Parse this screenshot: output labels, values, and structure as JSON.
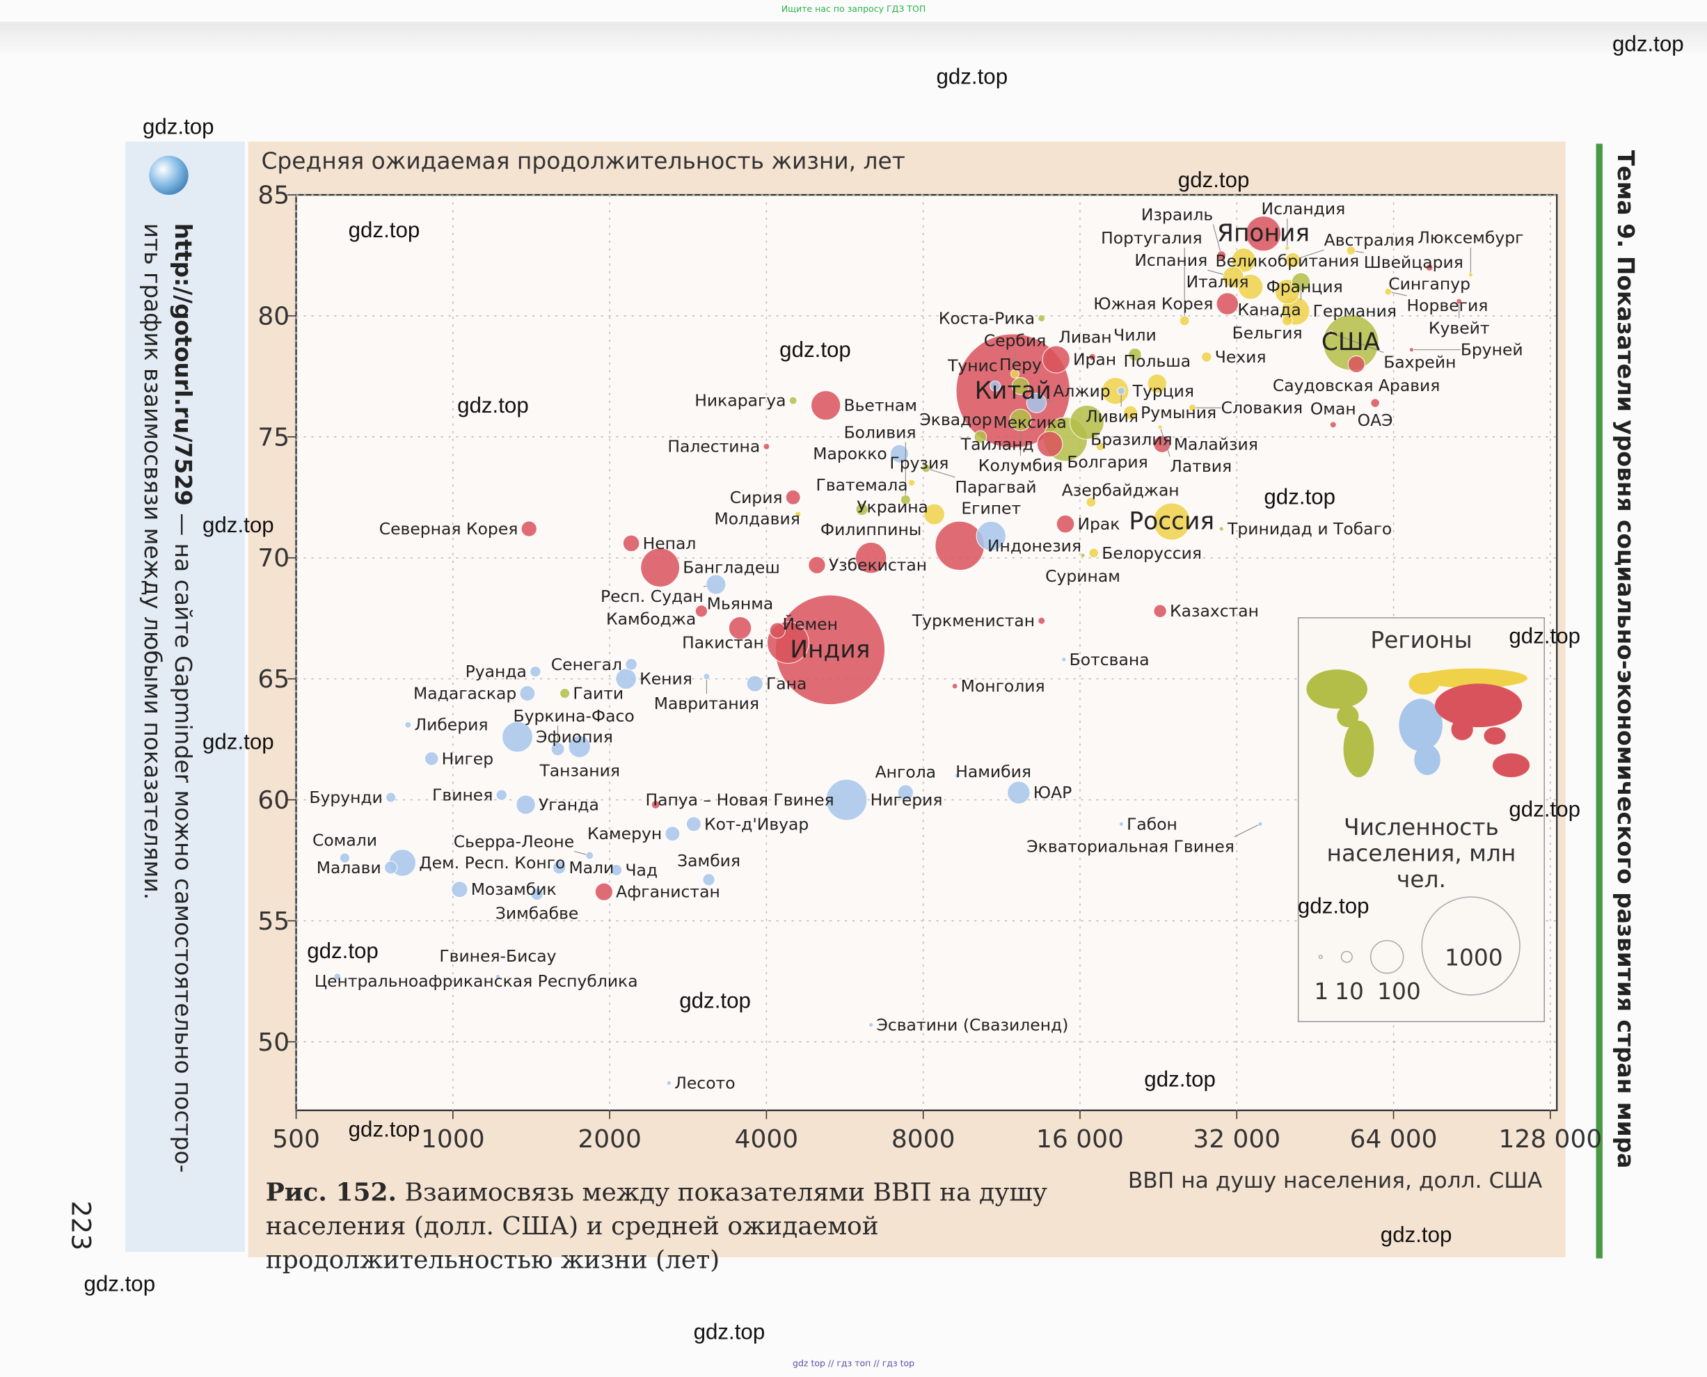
{
  "top_banner": "Ищите нас по запросу ГДЗ ТОП",
  "bottom_banner": "gdz top // гдз топ // гдз top",
  "watermark": "gdz.top",
  "sidebar": {
    "link": "http://gotourl.ru/7529",
    "text_line1": " — на сайте Gapminder можно самостоятельно постро-",
    "text_line2": "ить график взаимосвязи между любыми показателями.",
    "page_number": "223"
  },
  "topic_header": "Тема 9. Показатели уровня социально-экономического развития стран мира",
  "caption": {
    "label": "Рис. 152.",
    "text": "Взаимосвязь между показателями ВВП на душу населения (долл. США) и средней ожидаемой продолжительностью жизни (лет)"
  },
  "legend": {
    "regions_title": "Регионы",
    "population_title": "Численность населения, млн чел.",
    "sizes": [
      1,
      10,
      100,
      1000
    ]
  },
  "chart_data": {
    "type": "scatter",
    "title": "",
    "ylabel": "Средняя ожидаемая продолжительность жизни, лет",
    "xlabel": "ВВП на душу населения, долл. США",
    "x_scale": "log2",
    "xlim": [
      500,
      140000
    ],
    "ylim": [
      47,
      85
    ],
    "x_ticks": [
      500,
      1000,
      2000,
      4000,
      8000,
      16000,
      32000,
      64000,
      128000
    ],
    "x_tick_labels": [
      "500",
      "1000",
      "2000",
      "4000",
      "8000",
      "16 000",
      "32 000",
      "64 000",
      "128 000"
    ],
    "y_ticks": [
      50,
      55,
      60,
      65,
      70,
      75,
      80,
      85
    ],
    "grid": true,
    "legend_position": "right",
    "size_encoding": "population, mln",
    "region_colors": {
      "asia": "#d9535d",
      "europe": "#efd24a",
      "americas": "#b3be48",
      "africa": "#a7c6ea"
    },
    "points": [
      {
        "country": "Япония",
        "gdp": 36000,
        "life": 83.4,
        "pop": 127,
        "region": "asia"
      },
      {
        "country": "Исландия",
        "gdp": 40000,
        "life": 82.8,
        "pop": 0.3,
        "region": "europe"
      },
      {
        "country": "Швейцария",
        "gdp": 53000,
        "life": 82.7,
        "pop": 8,
        "region": "europe"
      },
      {
        "country": "Австралия",
        "gdp": 41000,
        "life": 82.3,
        "pop": 23,
        "region": "europe"
      },
      {
        "country": "Италия",
        "gdp": 33000,
        "life": 82.3,
        "pop": 60,
        "region": "europe"
      },
      {
        "country": "Израиль",
        "gdp": 29900,
        "life": 82.5,
        "pop": 8,
        "region": "asia"
      },
      {
        "country": "Франция",
        "gdp": 34000,
        "life": 81.2,
        "pop": 65,
        "region": "europe"
      },
      {
        "country": "Испания",
        "gdp": 31500,
        "life": 81.6,
        "pop": 46,
        "region": "europe"
      },
      {
        "country": "Сингапур",
        "gdp": 75000,
        "life": 82.0,
        "pop": 5,
        "region": "asia"
      },
      {
        "country": "Люксембург",
        "gdp": 90000,
        "life": 81.7,
        "pop": 0.5,
        "region": "europe"
      },
      {
        "country": "Канада",
        "gdp": 42500,
        "life": 81.4,
        "pop": 35,
        "region": "americas"
      },
      {
        "country": "Великобритания",
        "gdp": 40000,
        "life": 81.0,
        "pop": 63,
        "region": "europe"
      },
      {
        "country": "Норвегия",
        "gdp": 62500,
        "life": 81.0,
        "pop": 5,
        "region": "europe"
      },
      {
        "country": "Южная Корея",
        "gdp": 30700,
        "life": 80.5,
        "pop": 50,
        "region": "asia"
      },
      {
        "country": "Германия",
        "gdp": 41500,
        "life": 80.2,
        "pop": 82,
        "region": "europe"
      },
      {
        "country": "Кувейт",
        "gdp": 85500,
        "life": 80.6,
        "pop": 3,
        "region": "asia"
      },
      {
        "country": "Коста-Рика",
        "gdp": 13500,
        "life": 79.9,
        "pop": 5,
        "region": "americas"
      },
      {
        "country": "Португалия",
        "gdp": 25400,
        "life": 79.8,
        "pop": 10,
        "region": "europe"
      },
      {
        "country": "Бельгия",
        "gdp": 40000,
        "life": 79.8,
        "pop": 11,
        "region": "europe"
      },
      {
        "country": "США",
        "gdp": 53000,
        "life": 78.9,
        "pop": 320,
        "region": "americas"
      },
      {
        "country": "Бахрейн",
        "gdp": 48500,
        "life": 79.3,
        "pop": 1,
        "region": "asia"
      },
      {
        "country": "Бруней",
        "gdp": 69300,
        "life": 78.6,
        "pop": 0.4,
        "region": "asia"
      },
      {
        "country": "Саудовская Аравия",
        "gdp": 54300,
        "life": 78.0,
        "pop": 29,
        "region": "asia"
      },
      {
        "country": "ОАЭ",
        "gdp": 59000,
        "life": 76.4,
        "pop": 8,
        "region": "asia"
      },
      {
        "country": "Оман",
        "gdp": 49000,
        "life": 75.5,
        "pop": 4,
        "region": "asia"
      },
      {
        "country": "Китай",
        "gdp": 11900,
        "life": 76.9,
        "pop": 1350,
        "region": "asia"
      },
      {
        "country": "Иран",
        "gdp": 14400,
        "life": 78.2,
        "pop": 77,
        "region": "asia"
      },
      {
        "country": "Ливан",
        "gdp": 16900,
        "life": 78.3,
        "pop": 4.5,
        "region": "asia"
      },
      {
        "country": "Чили",
        "gdp": 20400,
        "life": 78.4,
        "pop": 17,
        "region": "americas"
      },
      {
        "country": "Чехия",
        "gdp": 28000,
        "life": 78.3,
        "pop": 10.5,
        "region": "europe"
      },
      {
        "country": "Сербия",
        "gdp": 12000,
        "life": 77.6,
        "pop": 7,
        "region": "europe"
      },
      {
        "country": "Тунис",
        "gdp": 11000,
        "life": 77.1,
        "pop": 11,
        "region": "africa"
      },
      {
        "country": "Перу",
        "gdp": 12300,
        "life": 77.1,
        "pop": 30,
        "region": "americas"
      },
      {
        "country": "Турция",
        "gdp": 18700,
        "life": 76.9,
        "pop": 75,
        "region": "europe"
      },
      {
        "country": "Польша",
        "gdp": 22500,
        "life": 77.2,
        "pop": 38,
        "region": "europe"
      },
      {
        "country": "Алжир",
        "gdp": 13200,
        "life": 76.4,
        "pop": 40,
        "region": "africa"
      },
      {
        "country": "Ливия",
        "gdp": 19200,
        "life": 76.9,
        "pop": 6,
        "region": "africa"
      },
      {
        "country": "Колумбия",
        "gdp": 12300,
        "life": 75.7,
        "pop": 48,
        "region": "americas"
      },
      {
        "country": "Румыния",
        "gdp": 20000,
        "life": 76.0,
        "pop": 20,
        "region": "europe"
      },
      {
        "country": "Словакия",
        "gdp": 26300,
        "life": 76.2,
        "pop": 5.4,
        "region": "europe"
      },
      {
        "country": "Мексика",
        "gdp": 16500,
        "life": 75.6,
        "pop": 120,
        "region": "americas"
      },
      {
        "country": "Латвия",
        "gdp": 22800,
        "life": 75.4,
        "pop": 2,
        "region": "europe"
      },
      {
        "country": "Эквадор",
        "gdp": 10300,
        "life": 75.0,
        "pop": 16,
        "region": "americas"
      },
      {
        "country": "Таиланд",
        "gdp": 14000,
        "life": 74.7,
        "pop": 67,
        "region": "asia"
      },
      {
        "country": "Бразилия",
        "gdp": 15000,
        "life": 74.9,
        "pop": 200,
        "region": "americas"
      },
      {
        "country": "Болгария",
        "gdp": 17500,
        "life": 74.6,
        "pop": 7,
        "region": "europe"
      },
      {
        "country": "Малайзия",
        "gdp": 23000,
        "life": 74.7,
        "pop": 30,
        "region": "asia"
      },
      {
        "country": "Вьетнам",
        "gdp": 5200,
        "life": 76.3,
        "pop": 90,
        "region": "asia"
      },
      {
        "country": "Никарагуа",
        "gdp": 4500,
        "life": 76.5,
        "pop": 6,
        "region": "americas"
      },
      {
        "country": "Палестина",
        "gdp": 4000,
        "life": 74.6,
        "pop": 4,
        "region": "asia"
      },
      {
        "country": "Марокко",
        "gdp": 7200,
        "life": 74.3,
        "pop": 34,
        "region": "africa"
      },
      {
        "country": "Парагвай",
        "gdp": 8100,
        "life": 73.7,
        "pop": 7,
        "region": "americas"
      },
      {
        "country": "Сирия",
        "gdp": 4500,
        "life": 72.5,
        "pop": 22,
        "region": "asia"
      },
      {
        "country": "Грузия",
        "gdp": 7600,
        "life": 73.1,
        "pop": 4.5,
        "region": "europe"
      },
      {
        "country": "Боливия",
        "gdp": 7400,
        "life": 72.4,
        "pop": 10,
        "region": "americas"
      },
      {
        "country": "Украина",
        "gdp": 8400,
        "life": 71.8,
        "pop": 45,
        "region": "europe"
      },
      {
        "country": "Азербайджан",
        "gdp": 16800,
        "life": 72.3,
        "pop": 9.5,
        "region": "europe"
      },
      {
        "country": "Молдавия",
        "gdp": 4600,
        "life": 71.8,
        "pop": 3.5,
        "region": "europe"
      },
      {
        "country": "Гватемала",
        "gdp": 6100,
        "life": 72.0,
        "pop": 15,
        "region": "americas"
      },
      {
        "country": "Египет",
        "gdp": 10800,
        "life": 70.9,
        "pop": 90,
        "region": "africa"
      },
      {
        "country": "Ирак",
        "gdp": 15000,
        "life": 71.4,
        "pop": 33,
        "region": "asia"
      },
      {
        "country": "Россия",
        "gdp": 24000,
        "life": 71.5,
        "pop": 143,
        "region": "europe"
      },
      {
        "country": "Тринидад и Тобаго",
        "gdp": 29900,
        "life": 71.2,
        "pop": 1.3,
        "region": "americas"
      },
      {
        "country": "Северная Корея",
        "gdp": 1400,
        "life": 71.2,
        "pop": 25,
        "region": "asia"
      },
      {
        "country": "Непал",
        "gdp": 2200,
        "life": 70.6,
        "pop": 28,
        "region": "asia"
      },
      {
        "country": "Бангладеш",
        "gdp": 2500,
        "life": 69.6,
        "pop": 157,
        "region": "asia"
      },
      {
        "country": "Респ. Судан",
        "gdp": 3200,
        "life": 68.9,
        "pop": 40,
        "region": "africa"
      },
      {
        "country": "Узбекистан",
        "gdp": 5000,
        "life": 69.7,
        "pop": 30,
        "region": "asia"
      },
      {
        "country": "Филиппины",
        "gdp": 6350,
        "life": 70.0,
        "pop": 100,
        "region": "asia"
      },
      {
        "country": "Индонезия",
        "gdp": 9400,
        "life": 70.5,
        "pop": 250,
        "region": "asia"
      },
      {
        "country": "Суринам",
        "gdp": 16200,
        "life": 70.1,
        "pop": 0.5,
        "region": "americas"
      },
      {
        "country": "Белоруссия",
        "gdp": 17000,
        "life": 70.2,
        "pop": 9.5,
        "region": "europe"
      },
      {
        "country": "Камбоджа",
        "gdp": 3000,
        "life": 67.8,
        "pop": 15,
        "region": "asia"
      },
      {
        "country": "Мьянма",
        "gdp": 3560,
        "life": 67.1,
        "pop": 53,
        "region": "asia"
      },
      {
        "country": "Йемен",
        "gdp": 4200,
        "life": 67.0,
        "pop": 25,
        "region": "asia"
      },
      {
        "country": "Пакистан",
        "gdp": 4400,
        "life": 66.5,
        "pop": 180,
        "region": "asia"
      },
      {
        "country": "Индия",
        "gdp": 5300,
        "life": 66.2,
        "pop": 1250,
        "region": "asia"
      },
      {
        "country": "Казахстан",
        "gdp": 22800,
        "life": 67.8,
        "pop": 17,
        "region": "asia"
      },
      {
        "country": "Туркменистан",
        "gdp": 13500,
        "life": 67.4,
        "pop": 5,
        "region": "asia"
      },
      {
        "country": "Ботсвана",
        "gdp": 14900,
        "life": 65.8,
        "pop": 2,
        "region": "africa"
      },
      {
        "country": "Монголия",
        "gdp": 9200,
        "life": 64.7,
        "pop": 3,
        "region": "asia"
      },
      {
        "country": "Руанда",
        "gdp": 1440,
        "life": 65.3,
        "pop": 12,
        "region": "africa"
      },
      {
        "country": "Сенегал",
        "gdp": 2200,
        "life": 65.6,
        "pop": 14,
        "region": "africa"
      },
      {
        "country": "Кения",
        "gdp": 2150,
        "life": 65.0,
        "pop": 44,
        "region": "africa"
      },
      {
        "country": "Мавритания",
        "gdp": 3070,
        "life": 65.1,
        "pop": 4,
        "region": "africa"
      },
      {
        "country": "Гана",
        "gdp": 3800,
        "life": 64.8,
        "pop": 27,
        "region": "africa"
      },
      {
        "country": "Мадагаскар",
        "gdp": 1390,
        "life": 64.4,
        "pop": 24,
        "region": "africa"
      },
      {
        "country": "Гаити",
        "gdp": 1640,
        "life": 64.4,
        "pop": 10,
        "region": "americas"
      },
      {
        "country": "Либерия",
        "gdp": 820,
        "life": 63.1,
        "pop": 4,
        "region": "africa"
      },
      {
        "country": "Эфиопия",
        "gdp": 1330,
        "life": 62.6,
        "pop": 97,
        "region": "africa"
      },
      {
        "country": "Танзания",
        "gdp": 1750,
        "life": 62.2,
        "pop": 50,
        "region": "africa"
      },
      {
        "country": "Буркина-Фасо",
        "gdp": 1590,
        "life": 62.1,
        "pop": 18,
        "region": "africa"
      },
      {
        "country": "Нигер",
        "gdp": 910,
        "life": 61.7,
        "pop": 19,
        "region": "africa"
      },
      {
        "country": "Гвинея",
        "gdp": 1240,
        "life": 60.2,
        "pop": 12,
        "region": "africa"
      },
      {
        "country": "Уганда",
        "gdp": 1380,
        "life": 59.8,
        "pop": 38,
        "region": "africa"
      },
      {
        "country": "Бурунди",
        "gdp": 760,
        "life": 60.1,
        "pop": 10,
        "region": "africa"
      },
      {
        "country": "Папуа – Новая Гвинея",
        "gdp": 2450,
        "life": 59.8,
        "pop": 7,
        "region": "asia"
      },
      {
        "country": "Кот-д'Ивуар",
        "gdp": 2900,
        "life": 59.0,
        "pop": 22,
        "region": "africa"
      },
      {
        "country": "Камерун",
        "gdp": 2640,
        "life": 58.6,
        "pop": 22,
        "region": "africa"
      },
      {
        "country": "Нигерия",
        "gdp": 5700,
        "life": 60.0,
        "pop": 175,
        "region": "africa"
      },
      {
        "country": "Ангола",
        "gdp": 7400,
        "life": 60.3,
        "pop": 25,
        "region": "africa"
      },
      {
        "country": "Намибия",
        "gdp": 9300,
        "life": 61.0,
        "pop": 2.3,
        "region": "africa"
      },
      {
        "country": "ЮАР",
        "gdp": 12200,
        "life": 60.3,
        "pop": 53,
        "region": "africa"
      },
      {
        "country": "Габон",
        "gdp": 19200,
        "life": 59.0,
        "pop": 1.7,
        "region": "africa"
      },
      {
        "country": "Экваториальная Гвинея",
        "gdp": 35500,
        "life": 59.0,
        "pop": 0.8,
        "region": "africa"
      },
      {
        "country": "Дем. Респ. Конго",
        "gdp": 800,
        "life": 57.4,
        "pop": 75,
        "region": "africa"
      },
      {
        "country": "Сомали",
        "gdp": 620,
        "life": 57.6,
        "pop": 10,
        "region": "africa"
      },
      {
        "country": "Малави",
        "gdp": 760,
        "life": 57.2,
        "pop": 17,
        "region": "africa"
      },
      {
        "country": "Мозамбик",
        "gdp": 1030,
        "life": 56.3,
        "pop": 27,
        "region": "africa"
      },
      {
        "country": "Зимбабве",
        "gdp": 1450,
        "life": 56.1,
        "pop": 15,
        "region": "africa"
      },
      {
        "country": "Мали",
        "gdp": 1600,
        "life": 57.2,
        "pop": 17,
        "region": "africa"
      },
      {
        "country": "Сьерра-Леоне",
        "gdp": 1830,
        "life": 57.7,
        "pop": 6,
        "region": "africa"
      },
      {
        "country": "Чад",
        "gdp": 2060,
        "life": 57.1,
        "pop": 13,
        "region": "africa"
      },
      {
        "country": "Замбия",
        "gdp": 3100,
        "life": 56.7,
        "pop": 15,
        "region": "africa"
      },
      {
        "country": "Афганистан",
        "gdp": 1950,
        "life": 56.2,
        "pop": 32,
        "region": "asia"
      },
      {
        "country": "Гвинея-Бисау",
        "gdp": 1220,
        "life": 52.7,
        "pop": 1.7,
        "region": "africa"
      },
      {
        "country": "Центральноафриканская Республика",
        "gdp": 600,
        "life": 52.7,
        "pop": 4.6,
        "region": "africa"
      },
      {
        "country": "Эсватини (Свазиленд)",
        "gdp": 6350,
        "life": 50.7,
        "pop": 1.2,
        "region": "africa"
      },
      {
        "country": "Лесото",
        "gdp": 2600,
        "life": 48.3,
        "pop": 2,
        "region": "africa"
      }
    ]
  }
}
